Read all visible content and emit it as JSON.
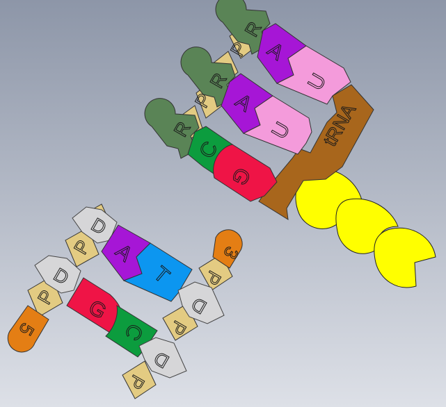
{
  "colors": {
    "background_top": "#8d96a8",
    "background_bottom": "#dde0e7",
    "phosphate": "#e3cb82",
    "ribose": "#5a8456",
    "deoxyribose": "#d6d6d8",
    "adenine": "#a616d6",
    "uracil": "#f49bdb",
    "cytosine": "#0c9c3e",
    "guanine": "#ef1446",
    "thymine": "#0c96f0",
    "trna": "#a8661c",
    "amino_acid": "#ffff00",
    "dna_end": "#e47e14"
  },
  "rna": {
    "sugars": [
      "R",
      "R",
      "R"
    ],
    "phosphates": [
      "P",
      "P"
    ],
    "bases": [
      "A",
      "A",
      "C"
    ],
    "pair_bases": [
      "U",
      "U",
      "G"
    ],
    "trna_label": "tRNA"
  },
  "dna": {
    "sugars": [
      "D",
      "D",
      "D"
    ],
    "phosphates_left": [
      "P",
      "P"
    ],
    "bases": [
      "A",
      "G"
    ],
    "pair_sugars": [
      "D",
      "D"
    ],
    "pair_bases": [
      "T",
      "C"
    ],
    "phosphates_right": [
      "P",
      "P",
      "P"
    ],
    "end_left": "5",
    "end_right": "3"
  },
  "icons": {
    "sugar_ribose": "ribose-sugar-icon",
    "sugar_deoxyribose": "deoxyribose-sugar-icon",
    "amino_acid": "amino-acid-chain-icon"
  }
}
